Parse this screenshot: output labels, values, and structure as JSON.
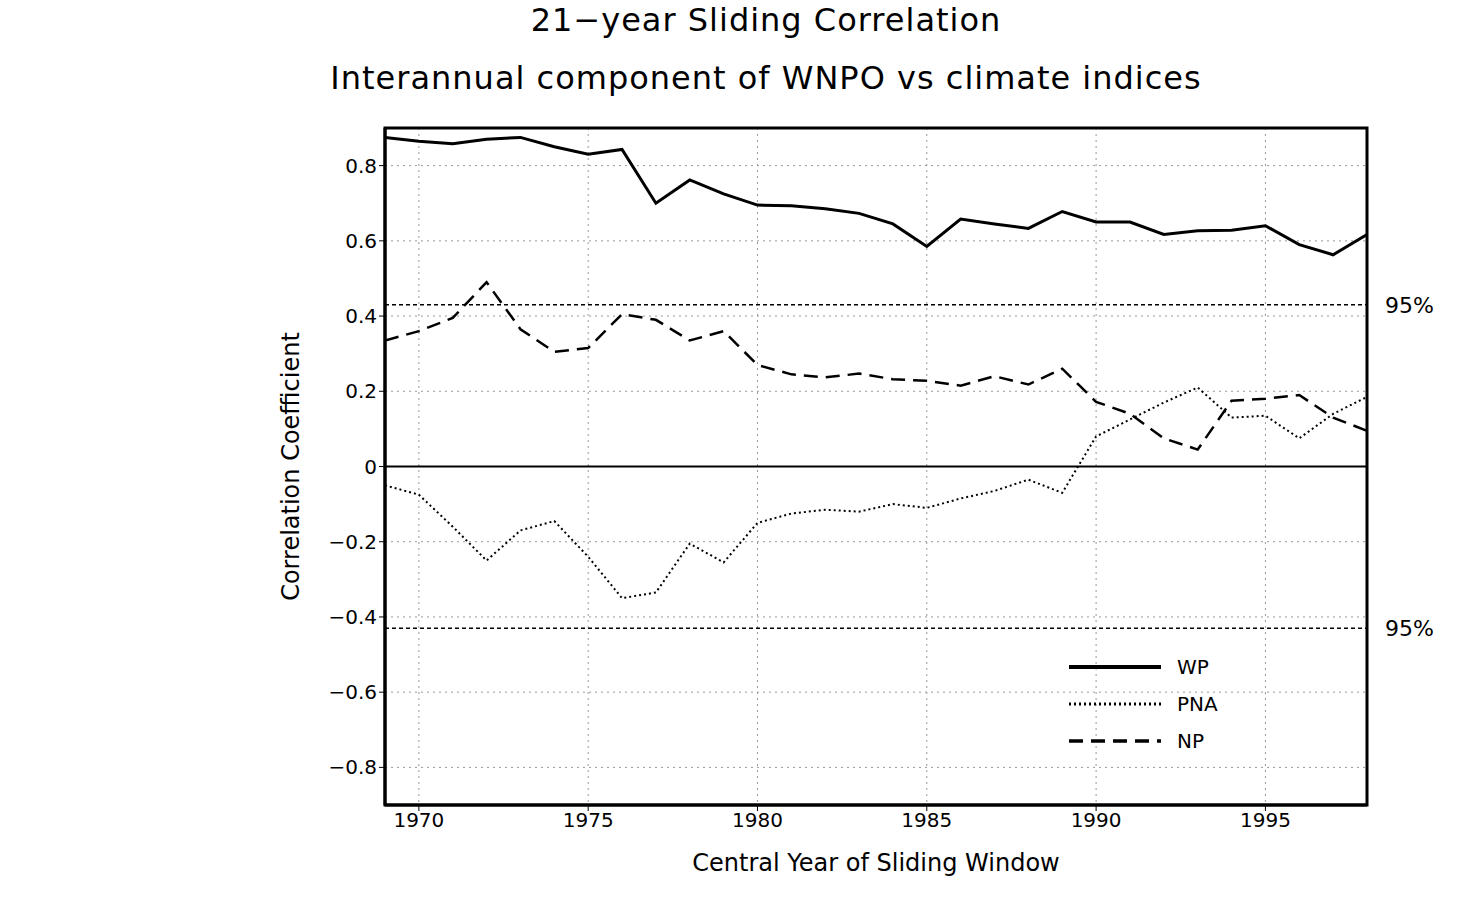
{
  "chart_data": {
    "type": "line",
    "title": "21−year Sliding Correlation",
    "subtitle": "Interannual component of WNPO vs climate indices",
    "x_label": "Central Year of Sliding Window",
    "y_label": "Correlation Coefficient",
    "x": [
      1969,
      1970,
      1971,
      1972,
      1973,
      1974,
      1975,
      1976,
      1977,
      1978,
      1979,
      1980,
      1981,
      1982,
      1983,
      1984,
      1985,
      1986,
      1987,
      1988,
      1989,
      1990,
      1991,
      1992,
      1993,
      1994,
      1995,
      1996,
      1997,
      1998
    ],
    "series": [
      {
        "name": "WP",
        "color": "#000000",
        "line_style": "solid",
        "values": [
          0.875,
          0.865,
          0.858,
          0.87,
          0.875,
          0.85,
          0.83,
          0.843,
          0.7,
          0.762,
          0.725,
          0.695,
          0.693,
          0.685,
          0.673,
          0.645,
          0.585,
          0.658,
          0.645,
          0.633,
          0.678,
          0.65,
          0.65,
          0.617,
          0.627,
          0.628,
          0.64,
          0.59,
          0.563,
          0.617
        ]
      },
      {
        "name": "PNA",
        "color": "#000000",
        "line_style": "dotted",
        "values": [
          -0.05,
          -0.075,
          -0.16,
          -0.25,
          -0.17,
          -0.145,
          -0.24,
          -0.35,
          -0.335,
          -0.205,
          -0.255,
          -0.15,
          -0.125,
          -0.115,
          -0.12,
          -0.1,
          -0.11,
          -0.085,
          -0.065,
          -0.035,
          -0.07,
          0.08,
          0.125,
          0.17,
          0.21,
          0.13,
          0.135,
          0.075,
          0.14,
          0.185
        ]
      },
      {
        "name": "NP",
        "color": "#000000",
        "line_style": "dashed",
        "values": [
          0.335,
          0.36,
          0.395,
          0.49,
          0.365,
          0.305,
          0.315,
          0.405,
          0.39,
          0.335,
          0.36,
          0.27,
          0.245,
          0.237,
          0.247,
          0.232,
          0.228,
          0.215,
          0.24,
          0.218,
          0.26,
          0.172,
          0.14,
          0.075,
          0.045,
          0.175,
          0.18,
          0.19,
          0.13,
          0.095
        ]
      }
    ],
    "xlim": [
      1969,
      1998
    ],
    "xticks": [
      1970,
      1975,
      1980,
      1985,
      1990,
      1995
    ],
    "ylim": [
      -0.9,
      0.9
    ],
    "yticks": [
      {
        "value": -0.8,
        "label": "−0.8"
      },
      {
        "value": -0.6,
        "label": "−0.6"
      },
      {
        "value": -0.4,
        "label": "−0.4"
      },
      {
        "value": -0.2,
        "label": "−0.2"
      },
      0,
      0.2,
      0.4,
      0.6,
      0.8
    ],
    "reference_lines": [
      {
        "value": 0.43,
        "label": "95%",
        "line_style": "dotted"
      },
      {
        "value": -0.43,
        "label": "95%",
        "line_style": "dotted"
      },
      {
        "value": 0,
        "line_style": "solid"
      }
    ],
    "grid": true,
    "legend": "lower right"
  }
}
